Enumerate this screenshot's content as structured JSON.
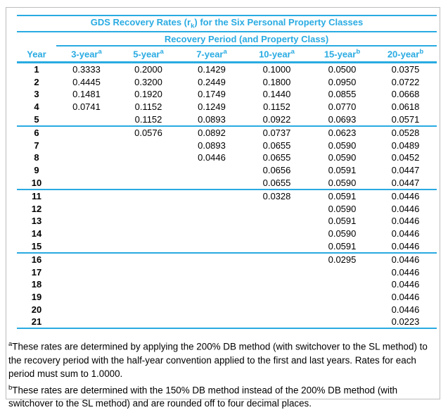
{
  "colors": {
    "accent": "#29ABE2",
    "frame_border": "#BDBDBD",
    "text": "#000000"
  },
  "table": {
    "title": {
      "prefix": "GDS Recovery Rates (r",
      "subscript": "k",
      "suffix": ") for the Six Personal Property Classes"
    },
    "subtitle": "Recovery Period (and Property Class)",
    "columns": [
      {
        "label": "Year",
        "sup": ""
      },
      {
        "label": "3-year",
        "sup": "a"
      },
      {
        "label": "5-year",
        "sup": "a"
      },
      {
        "label": "7-year",
        "sup": "a"
      },
      {
        "label": "10-year",
        "sup": "a"
      },
      {
        "label": "15-year",
        "sup": "b"
      },
      {
        "label": "20-year",
        "sup": "b"
      }
    ],
    "row_groups": [
      {
        "rows": [
          {
            "year": "1",
            "values": [
              "0.3333",
              "0.2000",
              "0.1429",
              "0.1000",
              "0.0500",
              "0.0375"
            ]
          },
          {
            "year": "2",
            "values": [
              "0.4445",
              "0.3200",
              "0.2449",
              "0.1800",
              "0.0950",
              "0.0722"
            ]
          },
          {
            "year": "3",
            "values": [
              "0.1481",
              "0.1920",
              "0.1749",
              "0.1440",
              "0.0855",
              "0.0668"
            ]
          },
          {
            "year": "4",
            "values": [
              "0.0741",
              "0.1152",
              "0.1249",
              "0.1152",
              "0.0770",
              "0.0618"
            ]
          },
          {
            "year": "5",
            "values": [
              "",
              "0.1152",
              "0.0893",
              "0.0922",
              "0.0693",
              "0.0571"
            ]
          }
        ]
      },
      {
        "rows": [
          {
            "year": "6",
            "values": [
              "",
              "0.0576",
              "0.0892",
              "0.0737",
              "0.0623",
              "0.0528"
            ]
          },
          {
            "year": "7",
            "values": [
              "",
              "",
              "0.0893",
              "0.0655",
              "0.0590",
              "0.0489"
            ]
          },
          {
            "year": "8",
            "values": [
              "",
              "",
              "0.0446",
              "0.0655",
              "0.0590",
              "0.0452"
            ]
          },
          {
            "year": "9",
            "values": [
              "",
              "",
              "",
              "0.0656",
              "0.0591",
              "0.0447"
            ]
          },
          {
            "year": "10",
            "values": [
              "",
              "",
              "",
              "0.0655",
              "0.0590",
              "0.0447"
            ]
          }
        ]
      },
      {
        "rows": [
          {
            "year": "11",
            "values": [
              "",
              "",
              "",
              "0.0328",
              "0.0591",
              "0.0446"
            ]
          },
          {
            "year": "12",
            "values": [
              "",
              "",
              "",
              "",
              "0.0590",
              "0.0446"
            ]
          },
          {
            "year": "13",
            "values": [
              "",
              "",
              "",
              "",
              "0.0591",
              "0.0446"
            ]
          },
          {
            "year": "14",
            "values": [
              "",
              "",
              "",
              "",
              "0.0590",
              "0.0446"
            ]
          },
          {
            "year": "15",
            "values": [
              "",
              "",
              "",
              "",
              "0.0591",
              "0.0446"
            ]
          }
        ]
      },
      {
        "rows": [
          {
            "year": "16",
            "values": [
              "",
              "",
              "",
              "",
              "0.0295",
              "0.0446"
            ]
          },
          {
            "year": "17",
            "values": [
              "",
              "",
              "",
              "",
              "",
              "0.0446"
            ]
          },
          {
            "year": "18",
            "values": [
              "",
              "",
              "",
              "",
              "",
              "0.0446"
            ]
          },
          {
            "year": "19",
            "values": [
              "",
              "",
              "",
              "",
              "",
              "0.0446"
            ]
          },
          {
            "year": "20",
            "values": [
              "",
              "",
              "",
              "",
              "",
              "0.0446"
            ]
          },
          {
            "year": "21",
            "values": [
              "",
              "",
              "",
              "",
              "",
              "0.0223"
            ]
          }
        ]
      }
    ]
  },
  "footnotes": [
    {
      "marker": "a",
      "text": "These rates are determined by applying the 200% DB method (with switchover to the SL method) to the recovery period with the half-year convention applied to the first and last years. Rates for each period must sum to 1.0000."
    },
    {
      "marker": "b",
      "text": "These rates are determined with the 150% DB method instead of the 200% DB method (with switchover to the SL method) and are rounded off to four decimal places."
    }
  ]
}
